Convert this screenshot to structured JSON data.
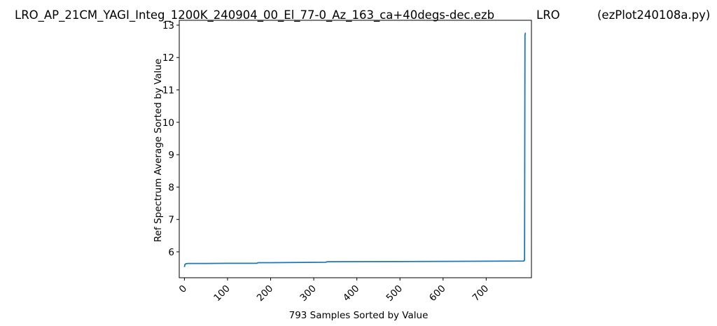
{
  "chart_data": {
    "type": "line",
    "title": "LRO_AP_21CM_YAGI_Integ_1200K_240904_00_El_77-0_Az_163_ca+40degs-dec.ezb",
    "title_mid": "LRO",
    "title_right": "(ezPlot240108a.py)",
    "xlabel": "793 Samples Sorted by Value",
    "ylabel": "Ref Spectrum Average Sorted by Value",
    "xlim": [
      -12,
      805
    ],
    "ylim": [
      5.2,
      13.15
    ],
    "xticks": [
      0,
      100,
      200,
      300,
      400,
      500,
      600,
      700
    ],
    "yticks": [
      6,
      7,
      8,
      9,
      10,
      11,
      12,
      13
    ],
    "line_color": "#1f77b4",
    "series": [
      {
        "x": [
          0,
          1,
          2,
          3,
          5,
          8,
          15,
          50,
          100,
          150,
          168,
          170,
          172,
          200,
          250,
          300,
          328,
          330,
          335,
          400,
          500,
          600,
          700,
          785,
          788,
          789,
          790,
          791,
          792
        ],
        "values": [
          5.53,
          5.6,
          5.62,
          5.63,
          5.635,
          5.64,
          5.64,
          5.64,
          5.645,
          5.645,
          5.645,
          5.66,
          5.665,
          5.665,
          5.67,
          5.675,
          5.678,
          5.69,
          5.695,
          5.697,
          5.7,
          5.705,
          5.71,
          5.715,
          5.72,
          5.75,
          12.7,
          12.75,
          12.75
        ]
      }
    ]
  }
}
